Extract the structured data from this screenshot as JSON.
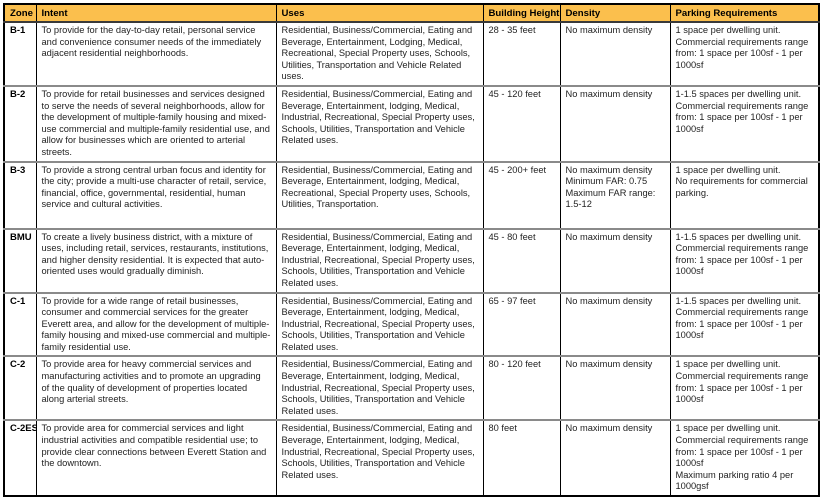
{
  "colors": {
    "header_bg": "#FBBF4D",
    "outer_border": "#000000",
    "row_divider": "#8A8A8A",
    "text": "#1F1F1F"
  },
  "table": {
    "headers": [
      "Zone",
      "Intent",
      "Uses",
      "Building Height",
      "Density",
      "Parking Requirements"
    ],
    "column_keys": [
      "zone",
      "intent",
      "uses",
      "building_height",
      "density",
      "parking_requirements"
    ],
    "rows": [
      {
        "zone": "B-1",
        "intent": "To provide for the day-to-day retail, personal service and convenience consumer needs of the immediately adjacent residential neighborhoods.",
        "uses": "Residential, Business/Commercial, Eating and Beverage, Entertainment, Lodging, Medical, Recreational, Special Property uses, Schools, Utilities, Transportation and Vehicle Related uses.",
        "building_height": "28 - 35 feet",
        "density": "No maximum density",
        "parking_requirements": "1 space per dwelling unit. Commercial requirements range from: 1 space per 100sf - 1 per 1000sf"
      },
      {
        "zone": "B-2",
        "intent": "To provide for retail businesses and services designed to serve the needs of several neighborhoods, allow for the development of multiple-family housing and mixed-use commercial and multiple-family residential use, and allow for businesses which are oriented to arterial streets.",
        "uses": "Residential, Business/Commercial, Eating and Beverage, Entertainment, lodging, Medical, Industrial, Recreational, Special Property uses, Schools, Utilities, Transportation and Vehicle Related uses.",
        "building_height": "45 - 120 feet",
        "density": "No maximum density",
        "parking_requirements": "1-1.5 spaces per dwelling unit. Commercial requirements range from: 1 space per 100sf - 1 per 1000sf"
      },
      {
        "zone": "B-3",
        "intent": "To provide a strong central urban focus and identity for the city; provide a multi-use character of retail, service, financial, office, governmental, residential, human service and cultural activities.",
        "uses": "Residential, Business/Commercial, Eating and Beverage, Entertainment, lodging, Medical, Recreational, Special Property uses, Schools, Utilities, Transportation.",
        "building_height": "45 - 200+ feet",
        "density": "No maximum density\nMinimum FAR: 0.75\nMaximum FAR range: 1.5-12",
        "parking_requirements": "1 space per dwelling unit.\nNo requirements for commercial parking."
      },
      {
        "zone": "BMU",
        "intent": "To create a lively business district,  with a mixture of uses, including retail, services, restaurants, institutions, and higher density residential. It is expected that auto-oriented uses would gradually diminish.",
        "uses": "Residential, Business/Commercial, Eating and Beverage, Entertainment, lodging, Medical, Industrial, Recreational, Special Property uses, Schools, Utilities, Transportation and Vehicle Related uses.",
        "building_height": "45 - 80 feet",
        "density": "No maximum density",
        "parking_requirements": "1-1.5  spaces per dwelling unit. Commercial requirements range from: 1 space per 100sf - 1 per 1000sf"
      },
      {
        "zone": "C-1",
        "intent": "To provide for a wide range of retail businesses, consumer and commercial services for the greater Everett area, and allow for the development of multiple-family housing and mixed-use commercial and multiple-family residential use.",
        "uses": "Residential, Business/Commercial, Eating and Beverage, Entertainment, lodging, Medical, Industrial, Recreational, Special Property uses, Schools, Utilities, Transportation and Vehicle Related uses.",
        "building_height": "65 - 97 feet",
        "density": "No maximum density",
        "parking_requirements": "1-1.5 spaces per dwelling unit. Commercial requirements range from: 1 space per 100sf - 1 per 1000sf"
      },
      {
        "zone": "C-2",
        "intent": "To provide area for heavy commercial services and manufacturing activities and to promote an upgrading of the quality of development of properties located along arterial streets.",
        "uses": "Residential, Business/Commercial, Eating and Beverage, Entertainment, lodging, Medical, Industrial, Recreational, Special Property uses, Schools, Utilities, Transportation and Vehicle Related uses.",
        "building_height": "80 - 120 feet",
        "density": "No maximum density",
        "parking_requirements": "1 space per dwelling unit. Commercial requirements range from: 1 space per 100sf - 1 per 1000sf"
      },
      {
        "zone": "C-2ES",
        "intent": "To provide area for commercial services and light industrial activities and compatible residential use; to provide clear connections between Everett Station and the downtown.",
        "uses": "Residential, Business/Commercial, Eating and Beverage, Entertainment, lodging, Medical, Industrial, Recreational, Special Property uses, Schools, Utilities, Transportation and Vehicle Related uses.",
        "building_height": "80 feet",
        "density": "No maximum density",
        "parking_requirements": "1 space per dwelling unit. Commercial requirements range from: 1 space per 100sf - 1 per 1000sf\nMaximum parking ratio 4 per 1000gsf"
      }
    ]
  }
}
